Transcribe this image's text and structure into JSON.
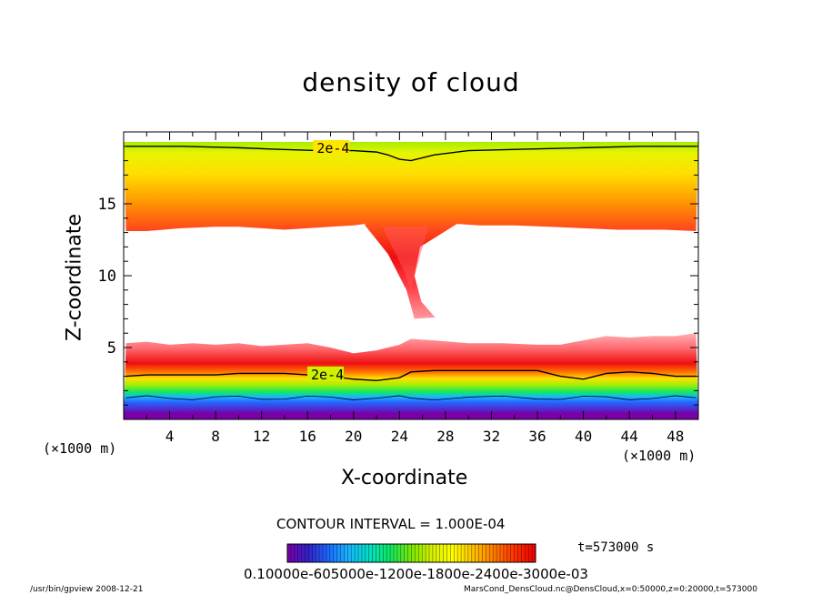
{
  "chart_data": {
    "type": "heatmap",
    "title": "density of cloud",
    "xlabel": "X-coordinate",
    "ylabel": "Z-coordinate",
    "x_unit_label": "(×1000 m)",
    "x_ticks": [
      4,
      8,
      12,
      16,
      20,
      24,
      28,
      32,
      36,
      40,
      44,
      48
    ],
    "y_ticks": [
      5,
      10,
      15
    ],
    "xlim": [
      0,
      50
    ],
    "ylim": [
      0,
      20
    ],
    "contour_interval_text": "CONTOUR INTERVAL = 1.000E-04",
    "contour_labels": [
      "2e-4",
      "2e-4"
    ],
    "contour_level": 0.0002,
    "time_text": "t=573000 s",
    "colorbar_labels_text": "0.10000e-605000e-1200e-1800e-2400e-3000e-03",
    "colorbar_range": [
      0.0,
      0.0007
    ],
    "upper_cloud_layer": {
      "base_km": [
        13.1,
        13.1,
        13.3,
        13.4,
        13.4,
        13.3,
        13.2,
        13.3,
        13.4,
        13.5,
        13.6,
        13.6,
        13.5,
        13.5,
        13.4,
        13.3,
        13.2,
        13.2,
        13.2,
        13.1
      ],
      "base_x": [
        0.2,
        2,
        5,
        8,
        10,
        12,
        14,
        16,
        18,
        20,
        21,
        29,
        31,
        34,
        37,
        40,
        43,
        45,
        47,
        49.8
      ],
      "top_km": 19.3,
      "contour_2e4_km": [
        19.0,
        19.0,
        18.9,
        18.8,
        18.7,
        18.7,
        18.6,
        18.4,
        18.1,
        18.0,
        18.4,
        18.7,
        18.8,
        18.9,
        19.0,
        19.0
      ],
      "contour_2e4_x": [
        0.2,
        5,
        10,
        13,
        17,
        20,
        22,
        23,
        24,
        25,
        27,
        30,
        35,
        40,
        45,
        49.8
      ],
      "max_km": 15.2
    },
    "tail": {
      "left_edge": [
        [
          21,
          13.5
        ],
        [
          23,
          11.5
        ],
        [
          24.6,
          9
        ],
        [
          25.3,
          7
        ]
      ],
      "right_edge": [
        [
          27.1,
          7.1
        ],
        [
          25.9,
          8.2
        ],
        [
          25.3,
          10
        ],
        [
          25.8,
          12
        ],
        [
          29,
          13.6
        ]
      ]
    },
    "lower_cloud_layer": {
      "top_x": [
        0.2,
        2,
        4,
        6,
        8,
        10,
        12,
        14,
        16,
        18,
        20,
        22,
        24,
        25,
        27,
        30,
        33,
        36,
        38,
        40,
        42,
        44,
        46,
        48,
        49.8
      ],
      "top_km": [
        5.3,
        5.4,
        5.2,
        5.3,
        5.2,
        5.3,
        5.1,
        5.2,
        5.3,
        5.0,
        4.6,
        4.8,
        5.2,
        5.6,
        5.5,
        5.3,
        5.3,
        5.2,
        5.2,
        5.5,
        5.8,
        5.7,
        5.8,
        5.8,
        6.0
      ],
      "max_km": 4.0,
      "contour_2e4_km": [
        3.0,
        3.1,
        3.1,
        3.1,
        3.1,
        3.2,
        3.2,
        3.2,
        3.1,
        3.0,
        2.8,
        2.7,
        2.9,
        3.3,
        3.4,
        3.4,
        3.4,
        3.4,
        3.0,
        2.8,
        3.2,
        3.3,
        3.2,
        3.0,
        3.0
      ],
      "base_km": 0.3
    },
    "colormap": [
      "#7a00a8",
      "#3320c8",
      "#1a6cff",
      "#18b8ff",
      "#00e0c0",
      "#10e860",
      "#7ae800",
      "#d8f000",
      "#ffff00",
      "#ffc000",
      "#ff7a00",
      "#ff3000",
      "#ee0000"
    ]
  },
  "footer": {
    "left": "/usr/bin/gpview  2008-12-21",
    "right": "MarsCond_DensCloud.nc@DensCloud,x=0:50000,z=0:20000,t=573000"
  }
}
